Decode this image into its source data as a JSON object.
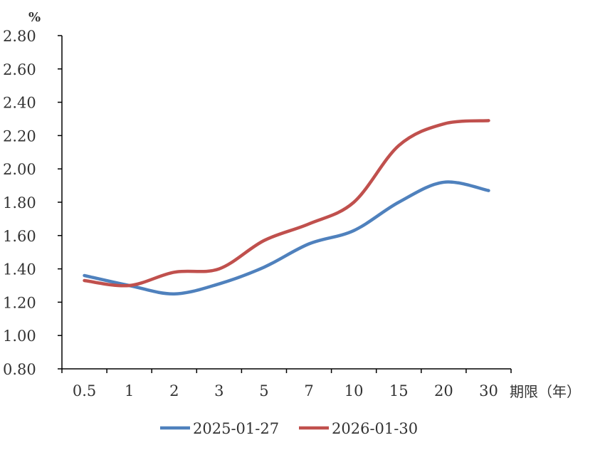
{
  "chart_data": {
    "type": "line",
    "ylabel": "%",
    "xlabel": "期限（年）",
    "categories": [
      "0.5",
      "1",
      "2",
      "3",
      "5",
      "7",
      "10",
      "15",
      "20",
      "30"
    ],
    "ylim": [
      0.8,
      2.8
    ],
    "yticks": [
      "0.80",
      "1.00",
      "1.20",
      "1.40",
      "1.60",
      "1.80",
      "2.00",
      "2.20",
      "2.40",
      "2.60",
      "2.80"
    ],
    "grid": false,
    "legend_position": "bottom",
    "series": [
      {
        "name": "2025-01-27",
        "color": "#4f81bd",
        "values": [
          1.36,
          1.3,
          1.25,
          1.31,
          1.41,
          1.55,
          1.63,
          1.8,
          1.92,
          1.87
        ]
      },
      {
        "name": "2026-01-30",
        "color": "#c0504d",
        "values": [
          1.33,
          1.3,
          1.38,
          1.4,
          1.57,
          1.67,
          1.8,
          2.14,
          2.27,
          2.29
        ]
      }
    ]
  }
}
